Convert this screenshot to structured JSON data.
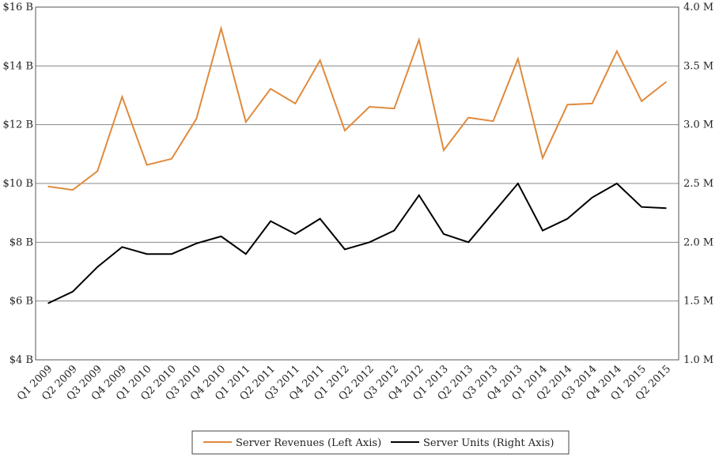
{
  "chart_data": {
    "type": "line",
    "categories": [
      "Q1 2009",
      "Q2 2009",
      "Q3 2009",
      "Q4 2009",
      "Q1 2010",
      "Q2 2010",
      "Q3 2010",
      "Q4 2010",
      "Q1 2011",
      "Q2 2011",
      "Q3 2011",
      "Q4 2011",
      "Q1 2012",
      "Q2 2012",
      "Q3 2012",
      "Q4 2012",
      "Q1 2013",
      "Q2 2013",
      "Q3 2013",
      "Q4 2013",
      "Q1 2014",
      "Q2 2014",
      "Q3 2014",
      "Q4 2014",
      "Q1 2015",
      "Q2 2015"
    ],
    "series": [
      {
        "name": "Server Revenues (Left Axis)",
        "axis": "left",
        "color": "#e08a3c",
        "values": [
          9.9,
          9.78,
          10.42,
          12.95,
          10.63,
          10.84,
          12.2,
          15.28,
          12.09,
          13.22,
          12.72,
          14.19,
          11.8,
          12.61,
          12.55,
          14.89,
          11.13,
          12.24,
          12.12,
          14.24,
          10.87,
          12.68,
          12.72,
          14.5,
          12.8,
          13.46
        ]
      },
      {
        "name": "Server Units (Right Axis)",
        "axis": "right",
        "color": "#000000",
        "values": [
          1.48,
          1.58,
          1.79,
          1.96,
          1.9,
          1.9,
          1.99,
          2.05,
          1.9,
          2.18,
          2.07,
          2.2,
          1.94,
          2.0,
          2.1,
          2.4,
          2.07,
          2.0,
          2.25,
          2.5,
          2.1,
          2.2,
          2.38,
          2.5,
          2.3,
          2.29
        ]
      }
    ],
    "y_left": {
      "ylim": [
        4,
        16
      ],
      "ticks": [
        4,
        6,
        8,
        10,
        12,
        14,
        16
      ],
      "tick_labels": [
        "$4 B",
        "$6 B",
        "$8 B",
        "$10 B",
        "$12 B",
        "$14 B",
        "$16 B"
      ]
    },
    "y_right": {
      "ylim": [
        1.0,
        4.0
      ],
      "ticks": [
        1.0,
        1.5,
        2.0,
        2.5,
        3.0,
        3.5,
        4.0
      ],
      "tick_labels": [
        "1.0 M",
        "1.5 M",
        "2.0 M",
        "2.5 M",
        "3.0 M",
        "3.5 M",
        "4.0 M"
      ]
    },
    "grid": true,
    "legend_position": "bottom-center",
    "title": "",
    "xlabel": "",
    "ylabel": ""
  }
}
